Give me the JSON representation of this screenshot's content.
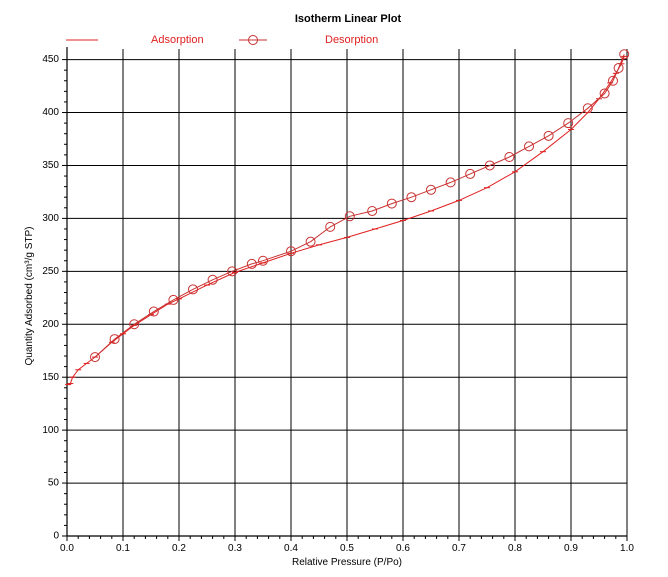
{
  "chart_data": {
    "type": "line",
    "title": "Isotherm Linear Plot",
    "xlabel": "Relative Pressure (P/Po)",
    "ylabel": "Quantity Adsorbed (cm³/g STP)",
    "xlim": [
      0.0,
      1.0
    ],
    "ylim": [
      0,
      460
    ],
    "x_ticks": [
      0.0,
      0.1,
      0.2,
      0.3,
      0.4,
      0.5,
      0.6,
      0.7,
      0.8,
      0.9,
      1.0
    ],
    "x_tick_labels": [
      "0.0",
      "0.1",
      "0.2",
      "0.3",
      "0.4",
      "0.5",
      "0.6",
      "0.7",
      "0.8",
      "0.9",
      "1.0"
    ],
    "y_ticks": [
      0,
      50,
      100,
      150,
      200,
      250,
      300,
      350,
      400,
      450
    ],
    "y_tick_labels": [
      "0",
      "50",
      "100",
      "150",
      "200",
      "250",
      "300",
      "350",
      "400",
      "450"
    ],
    "grid": true,
    "legend_position": "top",
    "line_color": "#e02020",
    "marker_color": "#c83232",
    "series": [
      {
        "name": "Adsorption",
        "marker": "tick",
        "points": [
          [
            0.002,
            143
          ],
          [
            0.006,
            144
          ],
          [
            0.01,
            150
          ],
          [
            0.02,
            157
          ],
          [
            0.035,
            163
          ],
          [
            0.05,
            169
          ],
          [
            0.08,
            183
          ],
          [
            0.1,
            191
          ],
          [
            0.12,
            199
          ],
          [
            0.15,
            209
          ],
          [
            0.18,
            219
          ],
          [
            0.2,
            224
          ],
          [
            0.25,
            237
          ],
          [
            0.3,
            249
          ],
          [
            0.35,
            258
          ],
          [
            0.4,
            267
          ],
          [
            0.45,
            275
          ],
          [
            0.5,
            282
          ],
          [
            0.55,
            290
          ],
          [
            0.6,
            298
          ],
          [
            0.65,
            307
          ],
          [
            0.7,
            317
          ],
          [
            0.75,
            329
          ],
          [
            0.8,
            344
          ],
          [
            0.85,
            363
          ],
          [
            0.9,
            384
          ],
          [
            0.93,
            400
          ],
          [
            0.95,
            413
          ],
          [
            0.97,
            428
          ],
          [
            0.98,
            437
          ],
          [
            0.99,
            446
          ],
          [
            0.995,
            453
          ]
        ]
      },
      {
        "name": "Desorption",
        "marker": "circle",
        "points": [
          [
            0.995,
            455
          ],
          [
            0.985,
            442
          ],
          [
            0.975,
            430
          ],
          [
            0.96,
            418
          ],
          [
            0.93,
            404
          ],
          [
            0.895,
            390
          ],
          [
            0.86,
            378
          ],
          [
            0.825,
            368
          ],
          [
            0.79,
            358
          ],
          [
            0.755,
            350
          ],
          [
            0.72,
            342
          ],
          [
            0.685,
            334
          ],
          [
            0.65,
            327
          ],
          [
            0.615,
            320
          ],
          [
            0.58,
            314
          ],
          [
            0.545,
            307
          ],
          [
            0.505,
            302
          ],
          [
            0.47,
            292
          ],
          [
            0.435,
            278
          ],
          [
            0.4,
            269
          ],
          [
            0.35,
            260
          ],
          [
            0.33,
            257
          ],
          [
            0.295,
            250
          ],
          [
            0.26,
            242
          ],
          [
            0.225,
            233
          ],
          [
            0.19,
            223
          ],
          [
            0.155,
            212
          ],
          [
            0.12,
            200
          ],
          [
            0.085,
            186
          ],
          [
            0.05,
            169
          ]
        ]
      }
    ]
  }
}
